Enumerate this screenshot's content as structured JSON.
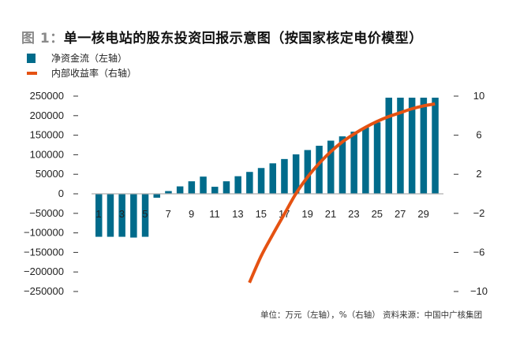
{
  "title": {
    "prefix": "图 1：",
    "main": "单一核电站的股东投资回报示意图（按国家核定电价模型）"
  },
  "footer": "单位：万元（左轴），%（右轴） 资料来源：中国中广核集团",
  "colors": {
    "bar": "#006b8b",
    "line": "#e55212",
    "zero_line": "#b0b0b0"
  },
  "chart_data": {
    "type": "bar+line",
    "title": "图 1：单一核电站的股东投资回报示意图（按国家核定电价模型）",
    "legend": [
      {
        "label": "净资金流（左轴）",
        "type": "bar"
      },
      {
        "label": "内部收益率（右轴）",
        "type": "line"
      }
    ],
    "legend_position": "top-left",
    "x": [
      1,
      2,
      3,
      4,
      5,
      6,
      7,
      8,
      9,
      10,
      11,
      12,
      13,
      14,
      15,
      16,
      17,
      18,
      19,
      20,
      21,
      22,
      23,
      24,
      25,
      26,
      27,
      28,
      29,
      30
    ],
    "x_tick_labels": [
      "1",
      "3",
      "5",
      "7",
      "9",
      "11",
      "13",
      "15",
      "17",
      "19",
      "21",
      "23",
      "25",
      "27",
      "29"
    ],
    "series": [
      {
        "name": "净资金流（左轴）",
        "axis": "left",
        "type": "bar",
        "values": [
          -110000,
          -110000,
          -110000,
          -112000,
          -110000,
          -10000,
          7000,
          19000,
          32000,
          44000,
          18000,
          32000,
          45000,
          56000,
          66000,
          78000,
          89000,
          101000,
          112000,
          123000,
          136000,
          147000,
          159000,
          170000,
          183000,
          246000,
          246000,
          246000,
          246000,
          246000
        ]
      },
      {
        "name": "内部收益率（右轴）",
        "axis": "right",
        "type": "line",
        "values": [
          null,
          null,
          null,
          null,
          null,
          null,
          null,
          null,
          null,
          null,
          null,
          null,
          null,
          -9.1,
          -6.4,
          -4.2,
          -2.1,
          0,
          1.7,
          3.1,
          4.3,
          5.3,
          6.1,
          6.8,
          7.4,
          7.9,
          8.3,
          8.7,
          9.0,
          9.2
        ]
      }
    ],
    "y_left": {
      "ylim": [
        -250000,
        250000
      ],
      "ticks": [
        "250000",
        "200000",
        "150000",
        "100000",
        "50000",
        "0",
        "−50000",
        "−100000",
        "−150000",
        "−200000",
        "−250000"
      ]
    },
    "y_right": {
      "ylim": [
        -10,
        10
      ],
      "ticks": [
        "10",
        "6",
        "2",
        "−2",
        "−6",
        "−10"
      ]
    },
    "grid": false,
    "xlabel": "",
    "ylabel": "",
    "units_note": "单位：万元（左轴），%（右轴）"
  }
}
